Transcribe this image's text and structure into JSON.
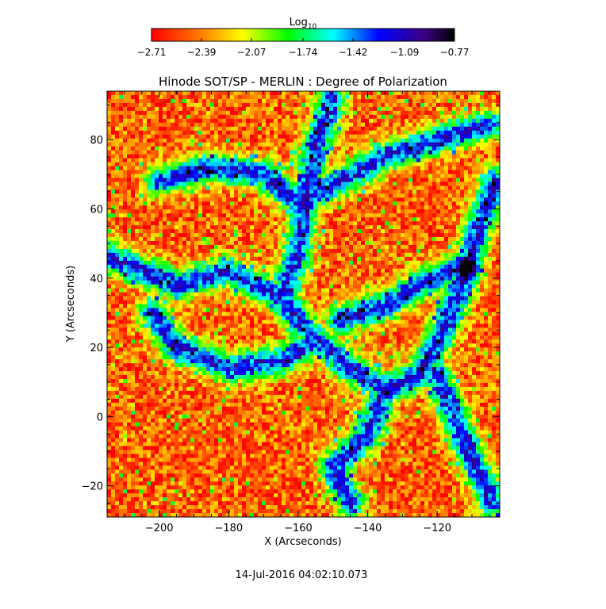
{
  "chart_data": {
    "type": "heatmap",
    "title": "Hinode SOT/SP - MERLIN : Degree of Polarization",
    "xlabel": "X (Arcseconds)",
    "ylabel": "Y (Arcseconds)",
    "xlim": [
      -215,
      -102
    ],
    "ylim": [
      -29,
      94
    ],
    "x_ticks": [
      -200,
      -180,
      -160,
      -140,
      -120
    ],
    "y_ticks": [
      -20,
      0,
      20,
      40,
      60,
      80
    ],
    "x_tick_labels": [
      "−200",
      "−180",
      "−160",
      "−140",
      "−120"
    ],
    "y_tick_labels": [
      "−20",
      "0",
      "20",
      "40",
      "60",
      "80"
    ],
    "colorbar": {
      "label_base": "Log",
      "label_sub": "10",
      "range": [
        -2.71,
        -0.77
      ],
      "ticks": [
        -2.71,
        -2.39,
        -2.07,
        -1.74,
        -1.42,
        -1.09,
        -0.77
      ],
      "tick_labels": [
        "−2.71",
        "−2.39",
        "−2.07",
        "−1.74",
        "−1.42",
        "−1.09",
        "−0.77"
      ],
      "colormap": [
        "#ff0000",
        "#ff7a00",
        "#ffff00",
        "#00ff00",
        "#00ffff",
        "#0000ff",
        "#000000"
      ]
    },
    "features": [
      {
        "name": "network-lane",
        "x": -180,
        "y": 40,
        "value": -1.15
      },
      {
        "name": "network-lane",
        "x": -160,
        "y": 22,
        "value": -1.2
      },
      {
        "name": "network-lane",
        "x": -140,
        "y": 8,
        "value": -1.15
      },
      {
        "name": "network-lane",
        "x": -155,
        "y": 80,
        "value": -1.25
      },
      {
        "name": "network-lane",
        "x": -120,
        "y": 38,
        "value": -1.25
      },
      {
        "name": "network-lane",
        "x": -108,
        "y": 62,
        "value": -1.2
      },
      {
        "name": "strong-spot",
        "x": -111,
        "y": 43,
        "value": -0.8
      }
    ]
  },
  "footer": {
    "timestamp": "14-Jul-2016 04:02:10.073"
  }
}
